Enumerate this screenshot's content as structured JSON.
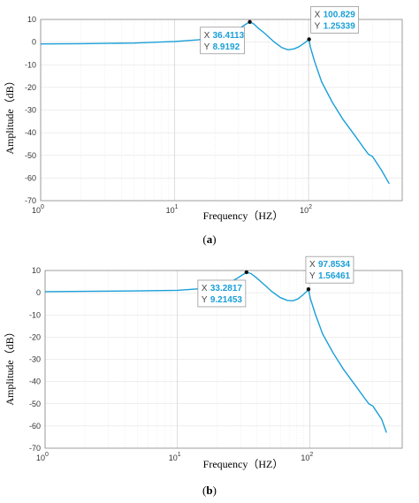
{
  "chart_data": [
    {
      "type": "line",
      "panel_label": "(a)",
      "label_letter": "a",
      "xlabel": "Frequency（HZ）",
      "ylabel": "Amplitude（dB）",
      "xscale": "log",
      "xlim": [
        1,
        500
      ],
      "ylim": [
        -70,
        10
      ],
      "yticks": [
        10,
        0,
        -10,
        -20,
        -30,
        -40,
        -50,
        -60,
        -70
      ],
      "xticks": [
        {
          "value": 1,
          "base": "10",
          "exp": "0"
        },
        {
          "value": 10,
          "base": "10",
          "exp": "1"
        },
        {
          "value": 100,
          "base": "10",
          "exp": "2"
        }
      ],
      "grid": true,
      "line_color": "#1a9fd8",
      "series": [
        {
          "x": [
            1,
            2,
            5,
            10,
            15,
            20,
            25,
            28,
            31,
            34,
            36.4113,
            39,
            42,
            47,
            55,
            63,
            70,
            78,
            85,
            92,
            97,
            100.829,
            103,
            110,
            125,
            150,
            180,
            220,
            260,
            280,
            300,
            350,
            400
          ],
          "y": [
            -0.8,
            -0.7,
            -0.4,
            0.3,
            1.0,
            2.0,
            3.5,
            4.7,
            6.3,
            7.9,
            8.9192,
            8.0,
            6.2,
            3.9,
            0.2,
            -2.4,
            -3.4,
            -3.0,
            -2.0,
            -0.6,
            0.4,
            1.25339,
            -2.0,
            -8.0,
            -17.5,
            -26.5,
            -34.0,
            -41.0,
            -47.0,
            -49.5,
            -50.5,
            -56.5,
            -62.5
          ]
        }
      ],
      "datatips": [
        {
          "x_label": "X",
          "x_value": "36.4113",
          "y_label": "Y",
          "y_value": "8.9192",
          "x": 36.4113,
          "y": 8.9192
        },
        {
          "x_label": "X",
          "x_value": "100.829",
          "y_label": "Y",
          "y_value": "1.25339",
          "x": 100.829,
          "y": 1.25339
        }
      ]
    },
    {
      "type": "line",
      "panel_label": "(b)",
      "label_letter": "b",
      "xlabel": "Frequency（HZ）",
      "ylabel": "Amplitude（dB）",
      "xscale": "log",
      "xlim": [
        1,
        500
      ],
      "ylim": [
        -70,
        10
      ],
      "yticks": [
        10,
        0,
        -10,
        -20,
        -30,
        -40,
        -50,
        -60,
        -70
      ],
      "xticks": [
        {
          "value": 1,
          "base": "10",
          "exp": "0"
        },
        {
          "value": 10,
          "base": "10",
          "exp": "1"
        },
        {
          "value": 100,
          "base": "10",
          "exp": "2"
        }
      ],
      "grid": true,
      "line_color": "#1a9fd8",
      "series": [
        {
          "x": [
            1,
            2,
            5,
            10,
            15,
            20,
            25,
            28,
            31,
            33.2817,
            36,
            40,
            45,
            52,
            60,
            68,
            75,
            82,
            90,
            95,
            97.8534,
            101,
            110,
            125,
            150,
            180,
            220,
            260,
            280,
            300,
            350,
            380
          ],
          "y": [
            0.5,
            0.6,
            0.8,
            1.1,
            1.8,
            2.8,
            4.8,
            6.3,
            8.0,
            9.21453,
            8.6,
            6.5,
            3.8,
            0.4,
            -2.2,
            -3.5,
            -3.6,
            -2.7,
            -0.7,
            0.6,
            1.56461,
            -2.5,
            -9.5,
            -18.5,
            -27.0,
            -34.5,
            -41.5,
            -47.5,
            -50.0,
            -51.0,
            -57.0,
            -63.0
          ]
        }
      ],
      "datatips": [
        {
          "x_label": "X",
          "x_value": "33.2817",
          "y_label": "Y",
          "y_value": "9.21453",
          "x": 33.2817,
          "y": 9.21453
        },
        {
          "x_label": "X",
          "x_value": "97.8534",
          "y_label": "Y",
          "y_value": "1.56461",
          "x": 97.8534,
          "y": 1.56461
        }
      ]
    }
  ]
}
